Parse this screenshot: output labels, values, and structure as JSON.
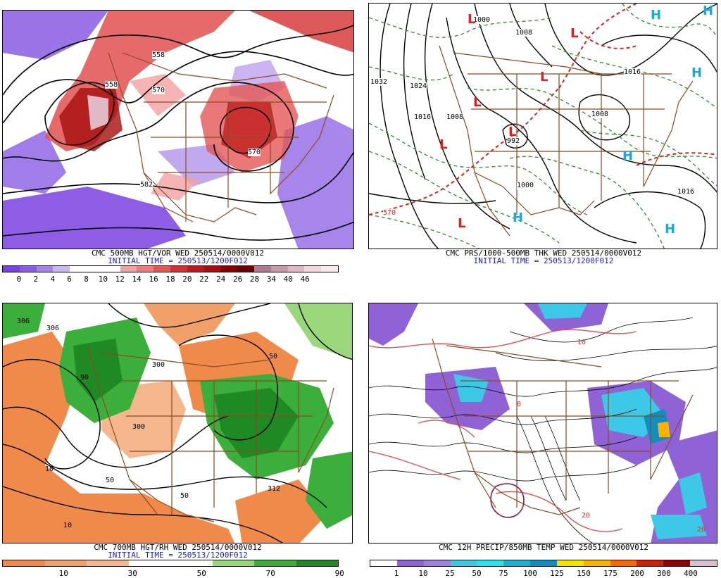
{
  "panels": {
    "tl": {
      "caption1": "CMC 500MB HGT/VOR WED 250514/0000V012",
      "caption2": "INITIAL TIME = 250513/1200F012",
      "legend_colors": [
        "#7b3fe0",
        "#8e5ae6",
        "#a784ea",
        "#c9b7f0",
        "#ffffff",
        "#ffffff",
        "#ffffff",
        "#f2a0a0",
        "#ee7a7a",
        "#e55656",
        "#d63030",
        "#c01818",
        "#a80c0c",
        "#8a0000",
        "#6a0000",
        "#b07a90",
        "#c999aa",
        "#e0b9c4",
        "#f5d6dd",
        "#fbe8ec"
      ],
      "legend_labels": [
        "0",
        "2",
        "4",
        "6",
        "8",
        "10",
        "12",
        "14",
        "16",
        "18",
        "20",
        "22",
        "24",
        "26",
        "28",
        "34",
        "40",
        "46"
      ],
      "contour_labels": [
        "558",
        "570",
        "582",
        "570",
        "558"
      ]
    },
    "tr": {
      "caption1": "CMC PRS/1000-500MB THK WED 250514/0000V012",
      "caption2": "INITIAL TIME = 250513/1200F012",
      "pressure_labels": [
        "1000",
        "1008",
        "1032",
        "1024",
        "1016",
        "1008",
        "992",
        "1000",
        "1016",
        "1008",
        "1016"
      ],
      "thickness_labels": [
        "570"
      ],
      "lows": [
        "L",
        "L",
        "L",
        "L",
        "L",
        "L",
        "L"
      ],
      "highs": [
        "H",
        "H",
        "H",
        "H",
        "H",
        "H"
      ]
    },
    "bl": {
      "caption1": "CMC 700MB HGT/RH WED 250514/0000V012",
      "caption2": "INITIAL TIME = 250513/1200F012",
      "legend_colors": [
        "#f08a4b",
        "#f2a06a",
        "#f5b78d",
        "#ffffff",
        "#ffffff",
        "#9ad67a",
        "#3cae3c",
        "#1f8a24"
      ],
      "legend_labels": [
        "10",
        "30",
        "50",
        "70",
        "90"
      ],
      "contour_labels": [
        "306",
        "300",
        "312",
        "306",
        "300",
        "50",
        "10",
        "10",
        "50",
        "90",
        "50"
      ]
    },
    "br": {
      "caption1": "CMC 12H PRECIP/850MB TEMP WED 250514/0000V012",
      "legend_colors": [
        "#ffffff",
        "#8f62d6",
        "#9f80e0",
        "#3cc8e6",
        "#28e2f0",
        "#1ab0d8",
        "#108ec0",
        "#f4e200",
        "#ffb000",
        "#ff6a00",
        "#d02000",
        "#900000",
        "#d8c0d0"
      ],
      "legend_labels": [
        "1",
        "10",
        "25",
        "50",
        "75",
        "100",
        "125",
        "150",
        "175",
        "200",
        "300",
        "400"
      ],
      "temp_labels": [
        "0",
        "10",
        "20",
        "20"
      ]
    }
  }
}
